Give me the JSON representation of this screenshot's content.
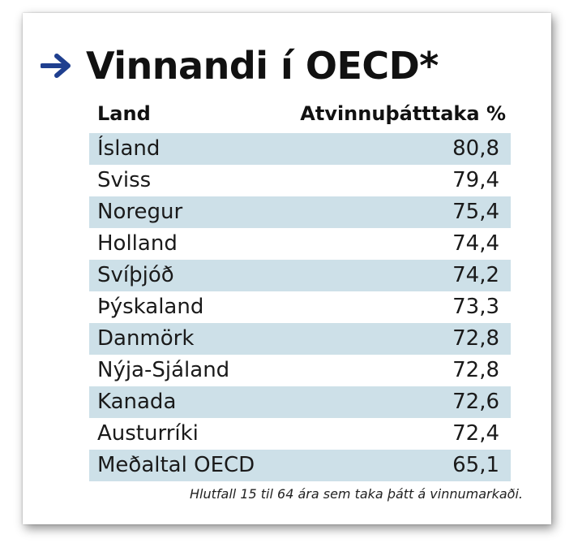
{
  "title": "Vinnandi í OECD*",
  "arrow_icon": "right-arrow-icon",
  "accent_color": "#1f3f8f",
  "row_shade_color": "#cde0e8",
  "footnote": "Hlutfall 15 til 64 ára sem taka þátt á vinnumarkaði.",
  "chart_data": {
    "type": "table",
    "columns": [
      "Land",
      "Atvinnuþátttaka %"
    ],
    "rows": [
      {
        "land": "Ísland",
        "value": "80,8"
      },
      {
        "land": "Sviss",
        "value": "79,4"
      },
      {
        "land": "Noregur",
        "value": "75,4"
      },
      {
        "land": "Holland",
        "value": "74,4"
      },
      {
        "land": "Svíþjóð",
        "value": "74,2"
      },
      {
        "land": "Þýskaland",
        "value": "73,3"
      },
      {
        "land": "Danmörk",
        "value": "72,8"
      },
      {
        "land": "Nýja-Sjáland",
        "value": "72,8"
      },
      {
        "land": "Kanada",
        "value": "72,6"
      },
      {
        "land": "Austurríki",
        "value": "72,4"
      },
      {
        "land": "Meðaltal OECD",
        "value": "65,1"
      }
    ]
  }
}
